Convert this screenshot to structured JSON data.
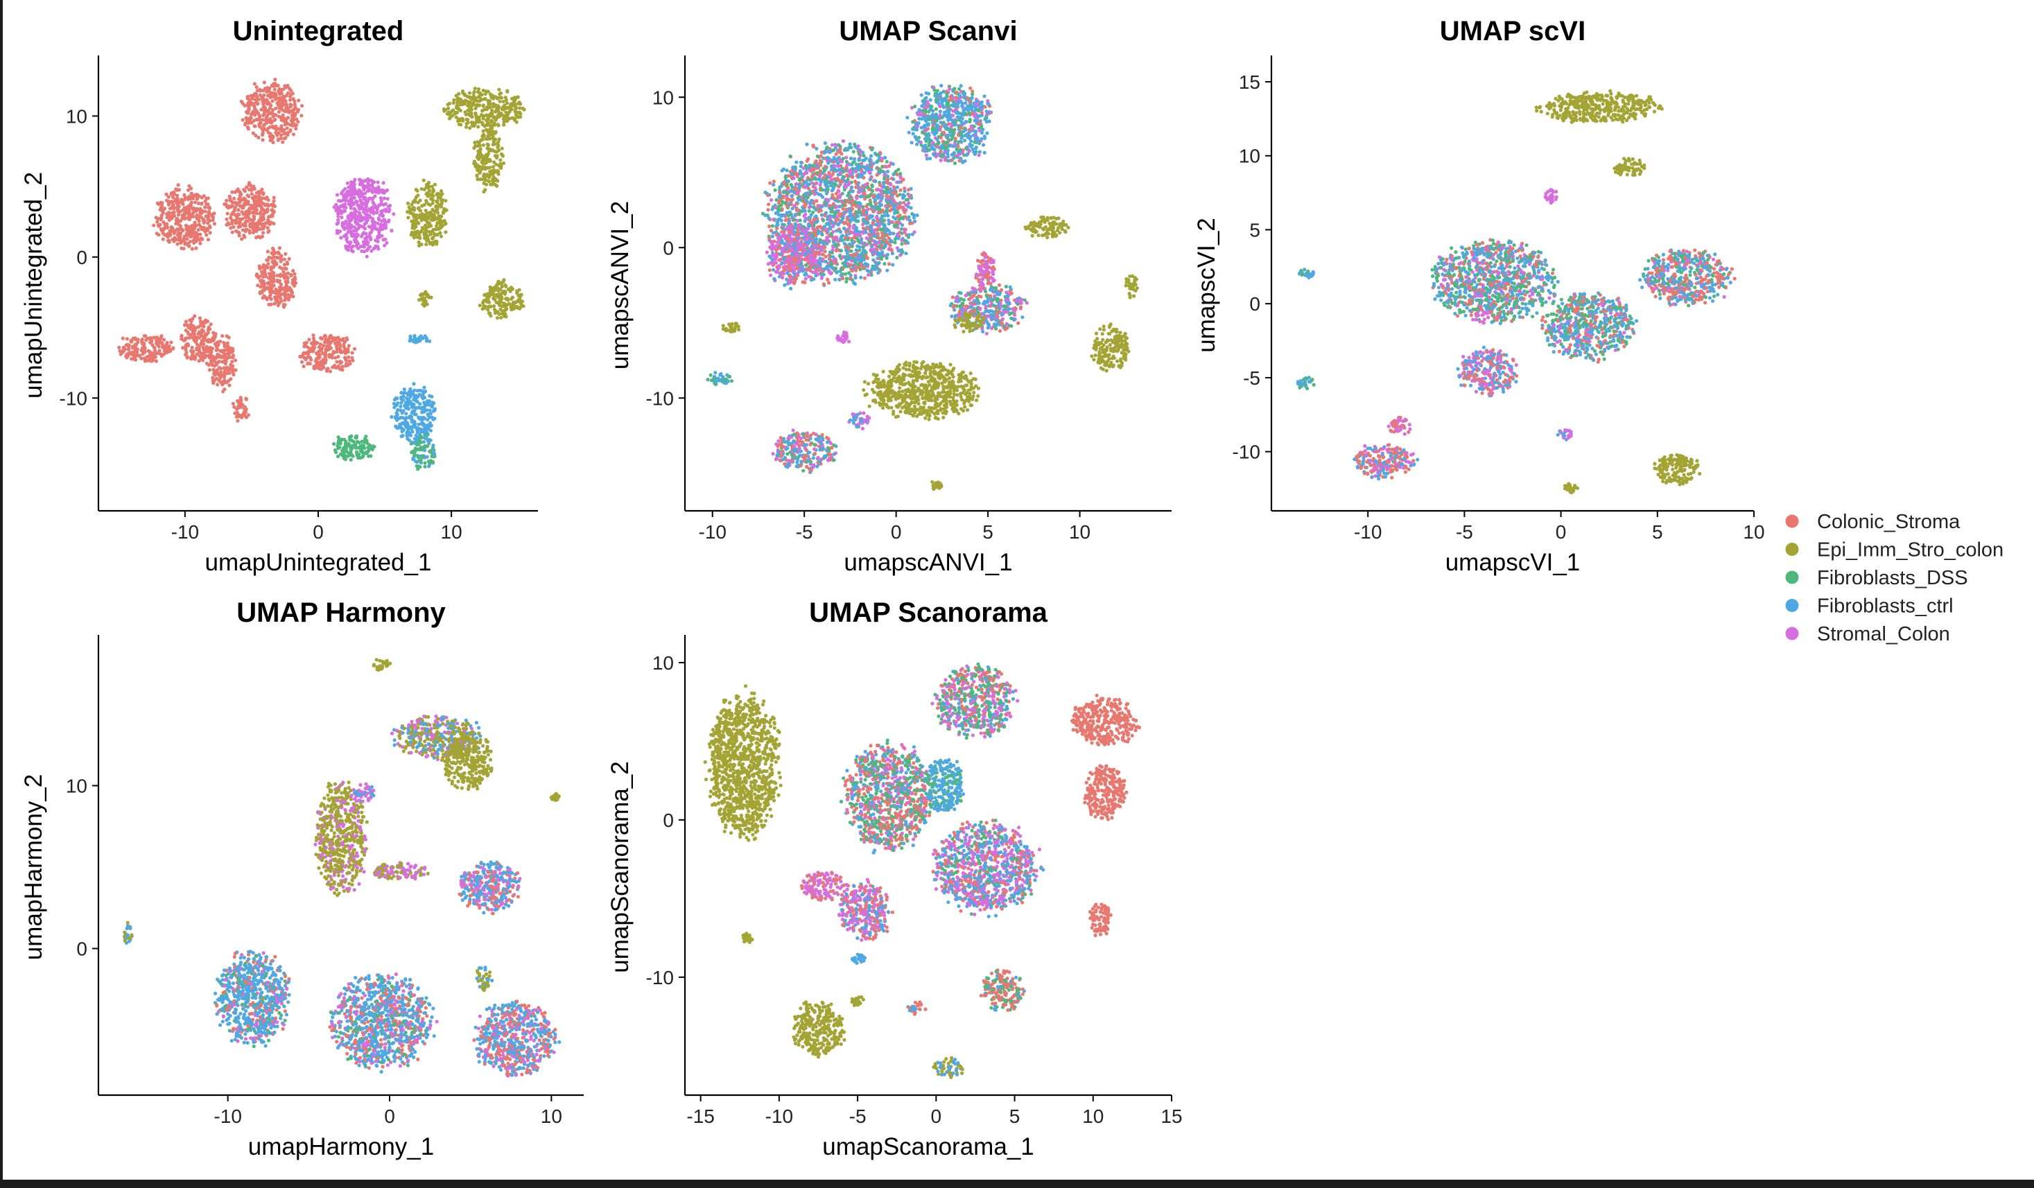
{
  "colors": {
    "Colonic_Stroma": "#e8786f",
    "Epi_Imm_Stro_colon": "#a3a434",
    "Fibroblasts_DSS": "#4eb87c",
    "Fibroblasts_ctrl": "#4ea8e4",
    "Stromal_Colon": "#d76ddf"
  },
  "legend": {
    "position": "right",
    "items": [
      "Colonic_Stroma",
      "Epi_Imm_Stro_colon",
      "Fibroblasts_DSS",
      "Fibroblasts_ctrl",
      "Stromal_Colon"
    ]
  },
  "chart_data": [
    {
      "type": "scatter",
      "title": "Unintegrated",
      "xlabel": "umapUnintegrated_1",
      "ylabel": "umapUnintegrated_2",
      "xlim": [
        -16.5,
        16.5
      ],
      "ylim": [
        -18,
        14
      ],
      "xticks": [
        -10,
        0,
        10
      ],
      "yticks": [
        -10,
        0,
        10
      ],
      "grid": false,
      "clusters": [
        {
          "x": -3.5,
          "y": 10.3,
          "rx": 2.1,
          "ry": 2.1,
          "mix": {
            "Colonic_Stroma": 1
          }
        },
        {
          "x": -10,
          "y": 2.8,
          "rx": 2.2,
          "ry": 2.1,
          "mix": {
            "Colonic_Stroma": 1
          }
        },
        {
          "x": -5.2,
          "y": 3.2,
          "rx": 2.0,
          "ry": 1.8,
          "mix": {
            "Colonic_Stroma": 1
          }
        },
        {
          "x": -3.1,
          "y": -1.5,
          "rx": 1.4,
          "ry": 2.0,
          "mix": {
            "Colonic_Stroma": 1
          }
        },
        {
          "x": -13,
          "y": -6.5,
          "rx": 2.0,
          "ry": 1.0,
          "mix": {
            "Colonic_Stroma": 1
          }
        },
        {
          "x": -9,
          "y": -6.0,
          "rx": 1.3,
          "ry": 1.7,
          "mix": {
            "Colonic_Stroma": 1
          }
        },
        {
          "x": -7.2,
          "y": -7.5,
          "rx": 1.0,
          "ry": 1.8,
          "mix": {
            "Colonic_Stroma": 1
          }
        },
        {
          "x": 0.6,
          "y": -6.8,
          "rx": 2.0,
          "ry": 1.3,
          "mix": {
            "Colonic_Stroma": 1
          }
        },
        {
          "x": -5.8,
          "y": -10.8,
          "rx": 0.6,
          "ry": 0.9,
          "mix": {
            "Colonic_Stroma": 1
          }
        },
        {
          "x": 3.4,
          "y": 3.0,
          "rx": 2.1,
          "ry": 2.7,
          "mix": {
            "Stromal_Colon": 1
          }
        },
        {
          "x": 12.5,
          "y": 10.5,
          "rx": 2.8,
          "ry": 1.4,
          "mix": {
            "Epi_Imm_Stro_colon": 1
          }
        },
        {
          "x": 12.8,
          "y": 7.0,
          "rx": 1.1,
          "ry": 2.2,
          "mix": {
            "Epi_Imm_Stro_colon": 1
          }
        },
        {
          "x": 8.2,
          "y": 3.0,
          "rx": 1.4,
          "ry": 2.2,
          "mix": {
            "Epi_Imm_Stro_colon": 1
          }
        },
        {
          "x": 13.8,
          "y": -3.0,
          "rx": 1.6,
          "ry": 1.3,
          "mix": {
            "Epi_Imm_Stro_colon": 1
          }
        },
        {
          "x": 8.0,
          "y": -3.0,
          "rx": 0.5,
          "ry": 0.5,
          "mix": {
            "Epi_Imm_Stro_colon": 1
          }
        },
        {
          "x": 7.2,
          "y": -11.2,
          "rx": 1.6,
          "ry": 2.0,
          "mix": {
            "Fibroblasts_ctrl": 1
          }
        },
        {
          "x": 7.8,
          "y": -13.8,
          "rx": 1.0,
          "ry": 1.2,
          "mix": {
            "Fibroblasts_DSS": 0.6,
            "Fibroblasts_ctrl": 0.4
          }
        },
        {
          "x": 2.7,
          "y": -13.5,
          "rx": 1.6,
          "ry": 0.9,
          "mix": {
            "Fibroblasts_DSS": 1
          }
        },
        {
          "x": 7.5,
          "y": -5.8,
          "rx": 0.9,
          "ry": 0.3,
          "mix": {
            "Fibroblasts_ctrl": 1
          }
        }
      ]
    },
    {
      "type": "scatter",
      "title": "UMAP Scanvi",
      "xlabel": "umapscANVI_1",
      "ylabel": "umapscANVI_2",
      "xlim": [
        -11.5,
        15
      ],
      "ylim": [
        -17.5,
        12.5
      ],
      "xticks": [
        -10,
        -5,
        0,
        5,
        10
      ],
      "yticks": [
        -10,
        0,
        10
      ],
      "grid": false,
      "clusters": [
        {
          "x": 3.0,
          "y": 8.2,
          "rx": 2.2,
          "ry": 2.5,
          "mix": {
            "Fibroblasts_ctrl": 0.5,
            "Fibroblasts_DSS": 0.25,
            "Stromal_Colon": 0.15,
            "Colonic_Stroma": 0.1
          }
        },
        {
          "x": -3.0,
          "y": 2.3,
          "rx": 3.8,
          "ry": 4.4,
          "mix": {
            "Fibroblasts_ctrl": 0.4,
            "Colonic_Stroma": 0.25,
            "Fibroblasts_DSS": 0.2,
            "Stromal_Colon": 0.15
          }
        },
        {
          "x": -5.5,
          "y": -0.5,
          "rx": 1.5,
          "ry": 2.0,
          "mix": {
            "Stromal_Colon": 0.5,
            "Colonic_Stroma": 0.3,
            "Fibroblasts_ctrl": 0.2
          }
        },
        {
          "x": 1.5,
          "y": -9.5,
          "rx": 3.0,
          "ry": 1.8,
          "mix": {
            "Epi_Imm_Stro_colon": 1
          }
        },
        {
          "x": 8.2,
          "y": 1.3,
          "rx": 1.1,
          "ry": 0.7,
          "mix": {
            "Epi_Imm_Stro_colon": 1
          }
        },
        {
          "x": 11.7,
          "y": -6.7,
          "rx": 1.0,
          "ry": 1.5,
          "mix": {
            "Epi_Imm_Stro_colon": 1
          }
        },
        {
          "x": 5.0,
          "y": -4.0,
          "rx": 1.9,
          "ry": 1.6,
          "mix": {
            "Fibroblasts_ctrl": 0.35,
            "Colonic_Stroma": 0.25,
            "Fibroblasts_DSS": 0.2,
            "Stromal_Colon": 0.2
          }
        },
        {
          "x": 4.9,
          "y": -1.5,
          "rx": 0.6,
          "ry": 1.2,
          "mix": {
            "Stromal_Colon": 0.6,
            "Colonic_Stroma": 0.4
          }
        },
        {
          "x": 4.0,
          "y": -5.0,
          "rx": 0.8,
          "ry": 0.6,
          "mix": {
            "Epi_Imm_Stro_colon": 1
          }
        },
        {
          "x": -5.0,
          "y": -13.5,
          "rx": 1.6,
          "ry": 1.3,
          "mix": {
            "Colonic_Stroma": 0.4,
            "Fibroblasts_ctrl": 0.3,
            "Stromal_Colon": 0.2,
            "Fibroblasts_DSS": 0.1
          }
        },
        {
          "x": -9.6,
          "y": -8.8,
          "rx": 0.6,
          "ry": 0.5,
          "mix": {
            "Fibroblasts_ctrl": 0.5,
            "Fibroblasts_DSS": 0.5
          }
        },
        {
          "x": -2.0,
          "y": -11.5,
          "rx": 0.6,
          "ry": 0.6,
          "mix": {
            "Fibroblasts_ctrl": 0.5,
            "Stromal_Colon": 0.5
          }
        },
        {
          "x": -2.9,
          "y": -6.0,
          "rx": 0.4,
          "ry": 0.4,
          "mix": {
            "Stromal_Colon": 1
          }
        },
        {
          "x": -9.0,
          "y": -5.3,
          "rx": 0.5,
          "ry": 0.3,
          "mix": {
            "Epi_Imm_Stro_colon": 1
          }
        },
        {
          "x": 12.8,
          "y": -2.5,
          "rx": 0.3,
          "ry": 0.8,
          "mix": {
            "Epi_Imm_Stro_colon": 1
          }
        },
        {
          "x": 2.2,
          "y": -15.8,
          "rx": 0.3,
          "ry": 0.3,
          "mix": {
            "Epi_Imm_Stro_colon": 1
          }
        }
      ]
    },
    {
      "type": "scatter",
      "title": "UMAP scVI",
      "xlabel": "umapscVI_1",
      "ylabel": "umapscVI_2",
      "xlim": [
        -15,
        10
      ],
      "ylim": [
        -14,
        16.5
      ],
      "xticks": [
        -10,
        -5,
        0,
        5,
        10
      ],
      "yticks": [
        -10,
        -5,
        0,
        5,
        10,
        15
      ],
      "grid": false,
      "clusters": [
        {
          "x": 2.0,
          "y": 13.3,
          "rx": 3.0,
          "ry": 1.0,
          "mix": {
            "Epi_Imm_Stro_colon": 1
          }
        },
        {
          "x": 3.5,
          "y": 9.2,
          "rx": 0.8,
          "ry": 0.6,
          "mix": {
            "Epi_Imm_Stro_colon": 1
          }
        },
        {
          "x": -0.5,
          "y": 7.3,
          "rx": 0.3,
          "ry": 0.5,
          "mix": {
            "Stromal_Colon": 1
          }
        },
        {
          "x": -3.5,
          "y": 1.5,
          "rx": 3.0,
          "ry": 2.7,
          "mix": {
            "Fibroblasts_ctrl": 0.35,
            "Fibroblasts_DSS": 0.3,
            "Colonic_Stroma": 0.2,
            "Stromal_Colon": 0.15
          }
        },
        {
          "x": 6.5,
          "y": 1.8,
          "rx": 2.3,
          "ry": 1.8,
          "mix": {
            "Colonic_Stroma": 0.4,
            "Fibroblasts_ctrl": 0.35,
            "Fibroblasts_DSS": 0.15,
            "Stromal_Colon": 0.1
          }
        },
        {
          "x": 1.5,
          "y": -1.5,
          "rx": 2.3,
          "ry": 2.2,
          "mix": {
            "Fibroblasts_ctrl": 0.35,
            "Fibroblasts_DSS": 0.3,
            "Colonic_Stroma": 0.25,
            "Stromal_Colon": 0.1
          }
        },
        {
          "x": -3.8,
          "y": -4.6,
          "rx": 1.5,
          "ry": 1.5,
          "mix": {
            "Fibroblasts_ctrl": 0.4,
            "Stromal_Colon": 0.3,
            "Colonic_Stroma": 0.3
          }
        },
        {
          "x": -9.2,
          "y": -10.6,
          "rx": 1.6,
          "ry": 1.1,
          "mix": {
            "Colonic_Stroma": 0.45,
            "Fibroblasts_ctrl": 0.3,
            "Stromal_Colon": 0.25
          }
        },
        {
          "x": -8.3,
          "y": -8.3,
          "rx": 0.6,
          "ry": 0.6,
          "mix": {
            "Colonic_Stroma": 0.5,
            "Stromal_Colon": 0.5
          }
        },
        {
          "x": -13.2,
          "y": -5.4,
          "rx": 0.5,
          "ry": 0.4,
          "mix": {
            "Fibroblasts_ctrl": 0.5,
            "Fibroblasts_DSS": 0.5
          }
        },
        {
          "x": 6.0,
          "y": -11.2,
          "rx": 1.2,
          "ry": 1.0,
          "mix": {
            "Epi_Imm_Stro_colon": 1
          }
        },
        {
          "x": 0.2,
          "y": -8.8,
          "rx": 0.4,
          "ry": 0.4,
          "mix": {
            "Fibroblasts_ctrl": 0.5,
            "Stromal_Colon": 0.5
          }
        },
        {
          "x": -13.2,
          "y": 2.0,
          "rx": 0.4,
          "ry": 0.3,
          "mix": {
            "Fibroblasts_ctrl": 0.6,
            "Fibroblasts_DSS": 0.4
          }
        },
        {
          "x": 0.5,
          "y": -12.5,
          "rx": 0.4,
          "ry": 0.3,
          "mix": {
            "Epi_Imm_Stro_colon": 1
          }
        }
      ]
    },
    {
      "type": "scatter",
      "title": "UMAP Harmony",
      "xlabel": "umapHarmony_1",
      "ylabel": "umapHarmony_2",
      "xlim": [
        -18,
        12
      ],
      "ylim": [
        -9,
        19
      ],
      "xticks": [
        -10,
        0,
        10
      ],
      "yticks": [
        0,
        10
      ],
      "grid": false,
      "clusters": [
        {
          "x": -8.5,
          "y": -3.0,
          "rx": 2.2,
          "ry": 2.8,
          "mix": {
            "Fibroblasts_ctrl": 0.6,
            "Colonic_Stroma": 0.2,
            "Stromal_Colon": 0.1,
            "Fibroblasts_DSS": 0.1
          }
        },
        {
          "x": -0.5,
          "y": -4.5,
          "rx": 3.0,
          "ry": 2.8,
          "mix": {
            "Fibroblasts_ctrl": 0.5,
            "Colonic_Stroma": 0.25,
            "Stromal_Colon": 0.15,
            "Fibroblasts_DSS": 0.1
          }
        },
        {
          "x": 7.8,
          "y": -5.5,
          "rx": 2.4,
          "ry": 2.2,
          "mix": {
            "Fibroblasts_ctrl": 0.45,
            "Colonic_Stroma": 0.35,
            "Stromal_Colon": 0.2
          }
        },
        {
          "x": 6.2,
          "y": 3.8,
          "rx": 1.9,
          "ry": 1.5,
          "mix": {
            "Fibroblasts_ctrl": 0.5,
            "Colonic_Stroma": 0.3,
            "Stromal_Colon": 0.2
          }
        },
        {
          "x": -3.0,
          "y": 6.8,
          "rx": 1.5,
          "ry": 3.3,
          "mix": {
            "Epi_Imm_Stro_colon": 0.75,
            "Stromal_Colon": 0.25
          }
        },
        {
          "x": 0.5,
          "y": 4.7,
          "rx": 1.8,
          "ry": 0.5,
          "mix": {
            "Stromal_Colon": 0.6,
            "Epi_Imm_Stro_colon": 0.4
          }
        },
        {
          "x": 3.0,
          "y": 13.0,
          "rx": 2.6,
          "ry": 1.3,
          "mix": {
            "Epi_Imm_Stro_colon": 0.5,
            "Fibroblasts_ctrl": 0.3,
            "Stromal_Colon": 0.2
          }
        },
        {
          "x": 4.8,
          "y": 11.5,
          "rx": 1.5,
          "ry": 1.7,
          "mix": {
            "Epi_Imm_Stro_colon": 1
          }
        },
        {
          "x": -0.5,
          "y": 17.5,
          "rx": 0.5,
          "ry": 0.4,
          "mix": {
            "Epi_Imm_Stro_colon": 1
          }
        },
        {
          "x": -16.2,
          "y": 1.0,
          "rx": 0.3,
          "ry": 0.6,
          "mix": {
            "Fibroblasts_ctrl": 0.5,
            "Epi_Imm_Stro_colon": 0.5
          }
        },
        {
          "x": -1.5,
          "y": 9.5,
          "rx": 0.6,
          "ry": 0.6,
          "mix": {
            "Fibroblasts_ctrl": 0.5,
            "Stromal_Colon": 0.5
          }
        },
        {
          "x": 5.8,
          "y": -1.8,
          "rx": 0.5,
          "ry": 0.7,
          "mix": {
            "Fibroblasts_ctrl": 0.5,
            "Epi_Imm_Stro_colon": 0.5
          }
        },
        {
          "x": 10.2,
          "y": 9.3,
          "rx": 0.3,
          "ry": 0.2,
          "mix": {
            "Epi_Imm_Stro_colon": 1
          }
        }
      ]
    },
    {
      "type": "scatter",
      "title": "UMAP Scanorama",
      "xlabel": "umapScanorama_1",
      "ylabel": "umapScanorama_2",
      "xlim": [
        -16,
        15
      ],
      "ylim": [
        -17.5,
        11.5
      ],
      "xticks": [
        -15,
        -10,
        -5,
        0,
        5,
        10,
        15
      ],
      "yticks": [
        -10,
        0,
        10
      ],
      "grid": false,
      "clusters": [
        {
          "x": -12.3,
          "y": 3.5,
          "rx": 2.2,
          "ry": 4.5,
          "mix": {
            "Epi_Imm_Stro_colon": 1
          }
        },
        {
          "x": 2.5,
          "y": 7.5,
          "rx": 2.4,
          "ry": 2.2,
          "mix": {
            "Fibroblasts_DSS": 0.35,
            "Stromal_Colon": 0.3,
            "Colonic_Stroma": 0.2,
            "Fibroblasts_ctrl": 0.15
          }
        },
        {
          "x": -3.0,
          "y": 1.5,
          "rx": 2.7,
          "ry": 3.3,
          "mix": {
            "Colonic_Stroma": 0.35,
            "Fibroblasts_DSS": 0.3,
            "Fibroblasts_ctrl": 0.2,
            "Stromal_Colon": 0.15
          }
        },
        {
          "x": 0.5,
          "y": 2.2,
          "rx": 1.2,
          "ry": 1.8,
          "mix": {
            "Fibroblasts_ctrl": 0.7,
            "Fibroblasts_DSS": 0.3
          }
        },
        {
          "x": 3.2,
          "y": -3.0,
          "rx": 3.2,
          "ry": 2.8,
          "mix": {
            "Stromal_Colon": 0.35,
            "Fibroblasts_ctrl": 0.35,
            "Colonic_Stroma": 0.2,
            "Fibroblasts_DSS": 0.1
          }
        },
        {
          "x": 10.8,
          "y": 6.3,
          "rx": 2.0,
          "ry": 1.5,
          "mix": {
            "Colonic_Stroma": 1
          }
        },
        {
          "x": 10.7,
          "y": 1.8,
          "rx": 1.3,
          "ry": 1.7,
          "mix": {
            "Colonic_Stroma": 1
          }
        },
        {
          "x": 10.5,
          "y": -6.3,
          "rx": 0.7,
          "ry": 1.1,
          "mix": {
            "Colonic_Stroma": 1
          }
        },
        {
          "x": -4.5,
          "y": -5.8,
          "rx": 1.6,
          "ry": 1.8,
          "mix": {
            "Stromal_Colon": 0.45,
            "Colonic_Stroma": 0.3,
            "Fibroblasts_ctrl": 0.25
          }
        },
        {
          "x": -7.2,
          "y": -4.2,
          "rx": 1.4,
          "ry": 0.9,
          "mix": {
            "Stromal_Colon": 0.7,
            "Colonic_Stroma": 0.3
          }
        },
        {
          "x": 4.2,
          "y": -10.8,
          "rx": 1.3,
          "ry": 1.3,
          "mix": {
            "Colonic_Stroma": 0.6,
            "Fibroblasts_DSS": 0.25,
            "Fibroblasts_ctrl": 0.15
          }
        },
        {
          "x": -7.5,
          "y": -13.3,
          "rx": 1.6,
          "ry": 1.7,
          "mix": {
            "Epi_Imm_Stro_colon": 1
          }
        },
        {
          "x": 0.8,
          "y": -15.8,
          "rx": 0.9,
          "ry": 0.6,
          "mix": {
            "Epi_Imm_Stro_colon": 0.6,
            "Fibroblasts_ctrl": 0.4
          }
        },
        {
          "x": -1.3,
          "y": -12.0,
          "rx": 0.6,
          "ry": 0.4,
          "mix": {
            "Fibroblasts_ctrl": 0.5,
            "Colonic_Stroma": 0.5
          }
        },
        {
          "x": -12.0,
          "y": -7.5,
          "rx": 0.3,
          "ry": 0.3,
          "mix": {
            "Epi_Imm_Stro_colon": 1
          }
        },
        {
          "x": -5.0,
          "y": -8.8,
          "rx": 0.5,
          "ry": 0.3,
          "mix": {
            "Fibroblasts_ctrl": 1
          }
        },
        {
          "x": -5.0,
          "y": -11.5,
          "rx": 0.4,
          "ry": 0.3,
          "mix": {
            "Epi_Imm_Stro_colon": 1
          }
        }
      ]
    }
  ]
}
